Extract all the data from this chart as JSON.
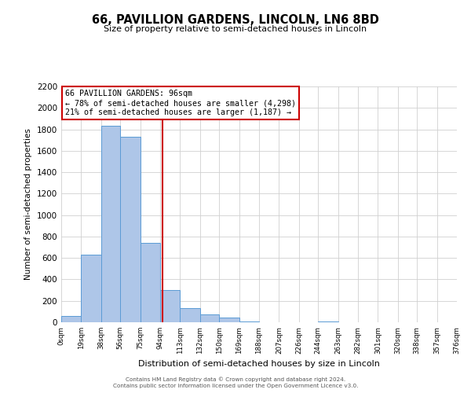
{
  "title": "66, PAVILLION GARDENS, LINCOLN, LN6 8BD",
  "subtitle": "Size of property relative to semi-detached houses in Lincoln",
  "xlabel": "Distribution of semi-detached houses by size in Lincoln",
  "ylabel": "Number of semi-detached properties",
  "bin_edges": [
    0,
    19,
    38,
    56,
    75,
    94,
    113,
    132,
    150,
    169,
    188,
    207,
    226,
    244,
    263,
    282,
    301,
    320,
    338,
    357,
    376
  ],
  "bar_heights": [
    60,
    630,
    1830,
    1730,
    740,
    300,
    130,
    70,
    45,
    10,
    0,
    0,
    0,
    10,
    0,
    0,
    0,
    0,
    0,
    0
  ],
  "bar_color": "#aec6e8",
  "bar_edge_color": "#5b9bd5",
  "property_value": 96,
  "vline_color": "#cc0000",
  "annotation_box_edge_color": "#cc0000",
  "annotation_title": "66 PAVILLION GARDENS: 96sqm",
  "annotation_line1": "← 78% of semi-detached houses are smaller (4,298)",
  "annotation_line2": "21% of semi-detached houses are larger (1,187) →",
  "ylim": [
    0,
    2200
  ],
  "yticks": [
    0,
    200,
    400,
    600,
    800,
    1000,
    1200,
    1400,
    1600,
    1800,
    2000,
    2200
  ],
  "tick_labels": [
    "0sqm",
    "19sqm",
    "38sqm",
    "56sqm",
    "75sqm",
    "94sqm",
    "113sqm",
    "132sqm",
    "150sqm",
    "169sqm",
    "188sqm",
    "207sqm",
    "226sqm",
    "244sqm",
    "263sqm",
    "282sqm",
    "301sqm",
    "320sqm",
    "338sqm",
    "357sqm",
    "376sqm"
  ],
  "footer_line1": "Contains HM Land Registry data © Crown copyright and database right 2024.",
  "footer_line2": "Contains public sector information licensed under the Open Government Licence v3.0.",
  "background_color": "#ffffff",
  "grid_color": "#d0d0d0"
}
